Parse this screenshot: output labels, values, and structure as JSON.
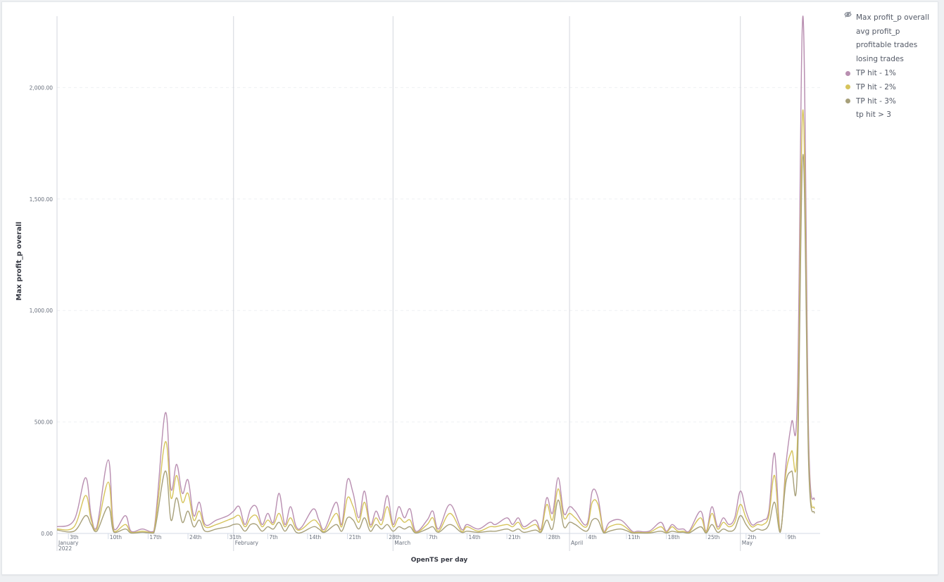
{
  "chart_data": {
    "type": "line",
    "xlabel": "OpenTS per day",
    "ylabel": "Max profit_p overall",
    "ylim": [
      0,
      2320
    ],
    "yticks": [
      {
        "value": 0,
        "label": "0.00"
      },
      {
        "value": 500,
        "label": "500.00"
      },
      {
        "value": 1000,
        "label": "1,000.00"
      },
      {
        "value": 1500,
        "label": "1,500.00"
      },
      {
        "value": 2000,
        "label": "2,000.00"
      }
    ],
    "x_range": [
      "2022-01-01",
      "2022-05-15"
    ],
    "xticks": [
      {
        "date": "2022-01-03",
        "label": "3th"
      },
      {
        "date": "2022-01-10",
        "label": "10th"
      },
      {
        "date": "2022-01-17",
        "label": "17th"
      },
      {
        "date": "2022-01-24",
        "label": "24th"
      },
      {
        "date": "2022-01-31",
        "label": "31th"
      },
      {
        "date": "2022-02-07",
        "label": "7th"
      },
      {
        "date": "2022-02-14",
        "label": "14th"
      },
      {
        "date": "2022-02-21",
        "label": "21th"
      },
      {
        "date": "2022-02-28",
        "label": "28th"
      },
      {
        "date": "2022-03-07",
        "label": "7th"
      },
      {
        "date": "2022-03-14",
        "label": "14th"
      },
      {
        "date": "2022-03-21",
        "label": "21th"
      },
      {
        "date": "2022-03-28",
        "label": "28th"
      },
      {
        "date": "2022-04-04",
        "label": "4th"
      },
      {
        "date": "2022-04-11",
        "label": "11th"
      },
      {
        "date": "2022-04-18",
        "label": "18th"
      },
      {
        "date": "2022-04-25",
        "label": "25th"
      },
      {
        "date": "2022-05-02",
        "label": "2th"
      },
      {
        "date": "2022-05-09",
        "label": "9th"
      }
    ],
    "months": [
      {
        "date": "2022-01-01",
        "label": "January",
        "sublabel": "2022"
      },
      {
        "date": "2022-02-01",
        "label": "February"
      },
      {
        "date": "2022-03-01",
        "label": "March"
      },
      {
        "date": "2022-04-01",
        "label": "April"
      },
      {
        "date": "2022-05-01",
        "label": "May"
      }
    ],
    "legend_position": "top-right",
    "grid": {
      "y": "dashed",
      "x": "month boundaries"
    },
    "legend": [
      {
        "name": "Max profit_p overall",
        "hidden": true
      },
      {
        "name": "avg profit_p",
        "hidden": true
      },
      {
        "name": "profitable trades",
        "hidden": true
      },
      {
        "name": "losing trades",
        "hidden": true
      },
      {
        "name": "TP hit - 1%",
        "hidden": false,
        "color": "#b98fb1"
      },
      {
        "name": "TP hit - 2%",
        "hidden": false,
        "color": "#d6c45c"
      },
      {
        "name": "TP hit - 3%",
        "hidden": false,
        "color": "#a7a07a"
      },
      {
        "name": "tp hit > 3",
        "hidden": true
      }
    ],
    "x": [
      "2022-01-01",
      "2022-01-04",
      "2022-01-06",
      "2022-01-07",
      "2022-01-08",
      "2022-01-10",
      "2022-01-11",
      "2022-01-13",
      "2022-01-14",
      "2022-01-16",
      "2022-01-18",
      "2022-01-20",
      "2022-01-21",
      "2022-01-22",
      "2022-01-23",
      "2022-01-24",
      "2022-01-25",
      "2022-01-26",
      "2022-01-27",
      "2022-01-29",
      "2022-01-31",
      "2022-02-01",
      "2022-02-02",
      "2022-02-03",
      "2022-02-04",
      "2022-02-05",
      "2022-02-06",
      "2022-02-07",
      "2022-02-08",
      "2022-02-09",
      "2022-02-10",
      "2022-02-11",
      "2022-02-12",
      "2022-02-13",
      "2022-02-15",
      "2022-02-16",
      "2022-02-17",
      "2022-02-19",
      "2022-02-20",
      "2022-02-21",
      "2022-02-22",
      "2022-02-23",
      "2022-02-24",
      "2022-02-25",
      "2022-02-26",
      "2022-02-27",
      "2022-02-28",
      "2022-03-01",
      "2022-03-02",
      "2022-03-03",
      "2022-03-04",
      "2022-03-05",
      "2022-03-07",
      "2022-03-08",
      "2022-03-09",
      "2022-03-11",
      "2022-03-13",
      "2022-03-14",
      "2022-03-16",
      "2022-03-18",
      "2022-03-19",
      "2022-03-21",
      "2022-03-22",
      "2022-03-23",
      "2022-03-24",
      "2022-03-26",
      "2022-03-27",
      "2022-03-28",
      "2022-03-29",
      "2022-03-30",
      "2022-03-31",
      "2022-04-01",
      "2022-04-02",
      "2022-04-04",
      "2022-04-05",
      "2022-04-06",
      "2022-04-07",
      "2022-04-08",
      "2022-04-10",
      "2022-04-12",
      "2022-04-13",
      "2022-04-15",
      "2022-04-17",
      "2022-04-18",
      "2022-04-19",
      "2022-04-20",
      "2022-04-21",
      "2022-04-22",
      "2022-04-24",
      "2022-04-25",
      "2022-04-26",
      "2022-04-27",
      "2022-04-28",
      "2022-04-29",
      "2022-04-30",
      "2022-05-01",
      "2022-05-02",
      "2022-05-03",
      "2022-05-04",
      "2022-05-05",
      "2022-05-06",
      "2022-05-07",
      "2022-05-08",
      "2022-05-09",
      "2022-05-10",
      "2022-05-11",
      "2022-05-12",
      "2022-05-13",
      "2022-05-14"
    ],
    "series": [
      {
        "name": "TP hit - 1%",
        "color": "#b98fb1",
        "values": [
          30,
          60,
          250,
          80,
          30,
          330,
          20,
          80,
          10,
          20,
          10,
          540,
          200,
          310,
          180,
          240,
          80,
          140,
          40,
          60,
          80,
          100,
          120,
          40,
          110,
          120,
          40,
          90,
          50,
          180,
          40,
          120,
          30,
          30,
          110,
          60,
          20,
          140,
          40,
          240,
          180,
          70,
          190,
          40,
          100,
          60,
          170,
          40,
          120,
          70,
          110,
          10,
          60,
          100,
          20,
          130,
          20,
          40,
          20,
          50,
          40,
          70,
          40,
          70,
          30,
          60,
          20,
          160,
          90,
          250,
          90,
          120,
          100,
          40,
          190,
          160,
          10,
          50,
          60,
          10,
          10,
          10,
          50,
          10,
          40,
          20,
          20,
          10,
          100,
          10,
          120,
          30,
          70,
          40,
          70,
          190,
          100,
          40,
          50,
          60,
          100,
          360,
          10,
          310,
          500,
          600,
          2320,
          420,
          150
        ]
      },
      {
        "name": "TP hit - 2%",
        "color": "#d6c45c",
        "values": [
          20,
          30,
          170,
          60,
          20,
          230,
          10,
          40,
          5,
          10,
          5,
          410,
          160,
          260,
          140,
          180,
          60,
          100,
          30,
          40,
          60,
          70,
          80,
          30,
          70,
          80,
          30,
          60,
          40,
          90,
          30,
          70,
          20,
          20,
          60,
          40,
          10,
          90,
          30,
          160,
          120,
          50,
          140,
          30,
          70,
          40,
          120,
          30,
          70,
          50,
          60,
          5,
          40,
          70,
          10,
          90,
          10,
          30,
          10,
          30,
          30,
          40,
          30,
          50,
          20,
          40,
          10,
          130,
          60,
          200,
          70,
          90,
          70,
          30,
          140,
          130,
          5,
          30,
          40,
          5,
          5,
          5,
          30,
          5,
          30,
          10,
          10,
          5,
          70,
          5,
          90,
          20,
          50,
          30,
          50,
          130,
          70,
          30,
          40,
          40,
          80,
          260,
          10,
          270,
          370,
          400,
          1900,
          340,
          110
        ]
      },
      {
        "name": "TP hit - 3%",
        "color": "#a7a07a",
        "values": [
          15,
          10,
          80,
          40,
          10,
          120,
          5,
          20,
          2,
          5,
          2,
          280,
          60,
          160,
          50,
          100,
          30,
          60,
          10,
          20,
          30,
          40,
          40,
          10,
          40,
          40,
          10,
          30,
          20,
          50,
          10,
          40,
          5,
          5,
          30,
          20,
          5,
          40,
          10,
          70,
          60,
          20,
          70,
          10,
          40,
          20,
          40,
          10,
          30,
          20,
          30,
          2,
          20,
          30,
          5,
          40,
          5,
          10,
          5,
          10,
          10,
          20,
          10,
          20,
          5,
          15,
          5,
          60,
          20,
          150,
          30,
          50,
          40,
          10,
          60,
          60,
          2,
          10,
          20,
          2,
          2,
          2,
          10,
          2,
          10,
          5,
          5,
          2,
          30,
          2,
          40,
          5,
          20,
          10,
          20,
          80,
          40,
          10,
          20,
          15,
          40,
          140,
          5,
          230,
          280,
          280,
          1700,
          300,
          90
        ]
      }
    ]
  }
}
